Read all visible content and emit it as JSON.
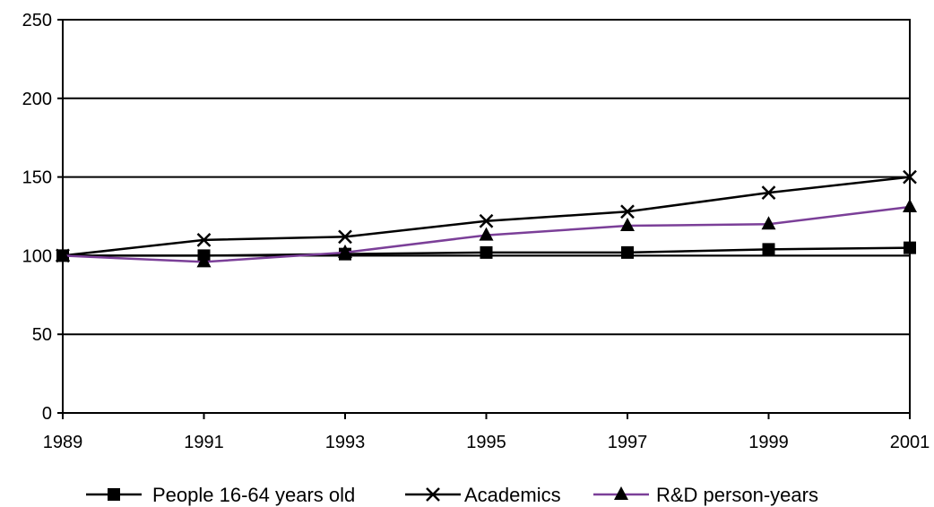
{
  "chart_data": {
    "type": "line",
    "categories": [
      "1989",
      "1991",
      "1993",
      "1995",
      "1997",
      "1999",
      "2001"
    ],
    "series": [
      {
        "name": "People 16-64 years old",
        "values": [
          100,
          100,
          101,
          102,
          102,
          104,
          105
        ],
        "color": "#000000",
        "marker": "square"
      },
      {
        "name": "Academics",
        "values": [
          100,
          110,
          112,
          122,
          128,
          140,
          150
        ],
        "color": "#000000",
        "marker": "x"
      },
      {
        "name": "R&D person-years",
        "values": [
          100,
          96,
          102,
          113,
          119,
          120,
          131
        ],
        "color": "#7b3f98",
        "marker": "triangle"
      }
    ],
    "y_ticks": [
      "0",
      "50",
      "100",
      "150",
      "200",
      "250"
    ],
    "ylim": [
      0,
      250
    ],
    "reference_line": 100,
    "grid": true,
    "legend_position": "bottom"
  }
}
